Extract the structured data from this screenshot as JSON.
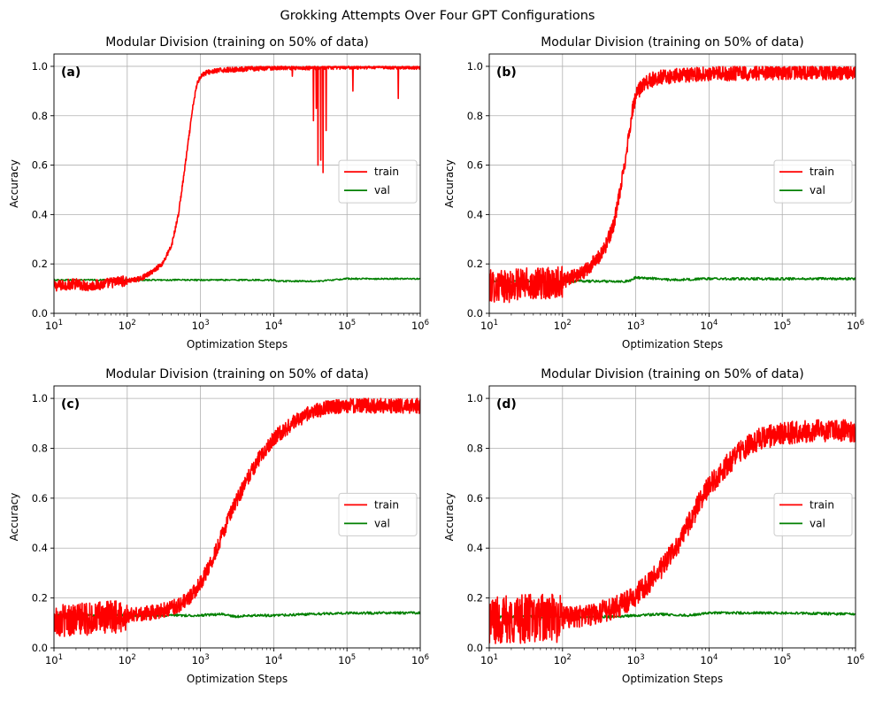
{
  "figure": {
    "suptitle": "Grokking Attempts Over Four GPT Configurations"
  },
  "colors": {
    "train": "#ff0000",
    "val": "#008000",
    "grid": "#b0b0b0",
    "axis": "#000000"
  },
  "chart_data": [
    {
      "type": "line",
      "panel_label": "(a)",
      "title": "Modular Division (training on 50% of data)",
      "xlabel": "Optimization Steps",
      "ylabel": "Accuracy",
      "xscale": "log",
      "xlim": [
        10,
        1000000
      ],
      "ylim": [
        0,
        1.05
      ],
      "xticks": [
        10,
        100,
        1000,
        10000,
        100000,
        1000000
      ],
      "xtick_labels": [
        {
          "base": "10",
          "exp": "1"
        },
        {
          "base": "10",
          "exp": "2"
        },
        {
          "base": "10",
          "exp": "3"
        },
        {
          "base": "10",
          "exp": "4"
        },
        {
          "base": "10",
          "exp": "5"
        },
        {
          "base": "10",
          "exp": "6"
        }
      ],
      "yticks": [
        0,
        0.2,
        0.4,
        0.6,
        0.8,
        1.0
      ],
      "ytick_labels": [
        "0.0",
        "0.2",
        "0.4",
        "0.6",
        "0.8",
        "1.0"
      ],
      "grid": true,
      "legend_position": "center-right",
      "series": [
        {
          "name": "train",
          "color": "#ff0000",
          "noise": 0.01,
          "x": [
            10,
            20,
            30,
            50,
            80,
            100,
            150,
            200,
            300,
            400,
            500,
            600,
            700,
            800,
            900,
            1000,
            1200,
            2000,
            5000,
            10000,
            30000,
            100000,
            1000000
          ],
          "y": [
            0.11,
            0.12,
            0.11,
            0.12,
            0.13,
            0.13,
            0.14,
            0.16,
            0.2,
            0.27,
            0.4,
            0.57,
            0.72,
            0.85,
            0.93,
            0.96,
            0.975,
            0.985,
            0.99,
            0.995,
            0.995,
            0.998,
            0.998
          ],
          "dips": [
            {
              "x": 18000,
              "y": 0.96
            },
            {
              "x": 35000,
              "y": 0.78
            },
            {
              "x": 38000,
              "y": 0.83
            },
            {
              "x": 40000,
              "y": 0.6
            },
            {
              "x": 44000,
              "y": 0.62
            },
            {
              "x": 47000,
              "y": 0.57
            },
            {
              "x": 52000,
              "y": 0.74
            },
            {
              "x": 120000,
              "y": 0.9
            },
            {
              "x": 500000,
              "y": 0.87
            }
          ]
        },
        {
          "name": "val",
          "color": "#008000",
          "noise": 0.003,
          "x": [
            10,
            1000,
            10000,
            11000,
            40000,
            100000,
            1000000
          ],
          "y": [
            0.135,
            0.135,
            0.135,
            0.13,
            0.13,
            0.14,
            0.14
          ]
        }
      ]
    },
    {
      "type": "line",
      "panel_label": "(b)",
      "title": "Modular Division (training on 50% of data)",
      "xlabel": "Optimization Steps",
      "ylabel": "Accuracy",
      "xscale": "log",
      "xlim": [
        10,
        1000000
      ],
      "ylim": [
        0,
        1.05
      ],
      "xticks": [
        10,
        100,
        1000,
        10000,
        100000,
        1000000
      ],
      "xtick_labels": [
        {
          "base": "10",
          "exp": "1"
        },
        {
          "base": "10",
          "exp": "2"
        },
        {
          "base": "10",
          "exp": "3"
        },
        {
          "base": "10",
          "exp": "4"
        },
        {
          "base": "10",
          "exp": "5"
        },
        {
          "base": "10",
          "exp": "6"
        }
      ],
      "yticks": [
        0,
        0.2,
        0.4,
        0.6,
        0.8,
        1.0
      ],
      "ytick_labels": [
        "0.0",
        "0.2",
        "0.4",
        "0.6",
        "0.8",
        "1.0"
      ],
      "grid": true,
      "legend_position": "center-right",
      "series": [
        {
          "name": "train",
          "color": "#ff0000",
          "noise": 0.03,
          "x": [
            10,
            20,
            30,
            50,
            80,
            100,
            150,
            200,
            300,
            400,
            500,
            600,
            700,
            800,
            900,
            1000,
            1200,
            1500,
            2000,
            5000,
            10000,
            100000,
            1000000
          ],
          "y": [
            0.11,
            0.11,
            0.12,
            0.12,
            0.13,
            0.13,
            0.15,
            0.17,
            0.22,
            0.28,
            0.36,
            0.48,
            0.6,
            0.72,
            0.82,
            0.88,
            0.92,
            0.94,
            0.955,
            0.965,
            0.97,
            0.975,
            0.975
          ],
          "dips": []
        },
        {
          "name": "val",
          "color": "#008000",
          "noise": 0.005,
          "x": [
            10,
            800,
            1000,
            2000,
            3000,
            10000,
            100000,
            1000000
          ],
          "y": [
            0.13,
            0.13,
            0.145,
            0.14,
            0.135,
            0.14,
            0.14,
            0.14
          ]
        }
      ]
    },
    {
      "type": "line",
      "panel_label": "(c)",
      "title": "Modular Division (training on 50% of data)",
      "xlabel": "Optimization Steps",
      "ylabel": "Accuracy",
      "xscale": "log",
      "xlim": [
        10,
        1000000
      ],
      "ylim": [
        0,
        1.05
      ],
      "xticks": [
        10,
        100,
        1000,
        10000,
        100000,
        1000000
      ],
      "xtick_labels": [
        {
          "base": "10",
          "exp": "1"
        },
        {
          "base": "10",
          "exp": "2"
        },
        {
          "base": "10",
          "exp": "3"
        },
        {
          "base": "10",
          "exp": "4"
        },
        {
          "base": "10",
          "exp": "5"
        },
        {
          "base": "10",
          "exp": "6"
        }
      ],
      "yticks": [
        0,
        0.2,
        0.4,
        0.6,
        0.8,
        1.0
      ],
      "ytick_labels": [
        "0.0",
        "0.2",
        "0.4",
        "0.6",
        "0.8",
        "1.0"
      ],
      "grid": true,
      "legend_position": "center-right",
      "series": [
        {
          "name": "train",
          "color": "#ff0000",
          "noise": 0.03,
          "x": [
            10,
            50,
            100,
            200,
            300,
            500,
            700,
            1000,
            1500,
            2000,
            3000,
            5000,
            7000,
            10000,
            20000,
            30000,
            50000,
            100000,
            1000000
          ],
          "y": [
            0.11,
            0.12,
            0.13,
            0.14,
            0.15,
            0.17,
            0.2,
            0.26,
            0.36,
            0.46,
            0.58,
            0.71,
            0.78,
            0.84,
            0.91,
            0.94,
            0.96,
            0.97,
            0.97
          ],
          "dips": []
        },
        {
          "name": "val",
          "color": "#008000",
          "noise": 0.005,
          "x": [
            10,
            1000,
            1200,
            2000,
            3000,
            5000,
            10000,
            100000,
            1000000
          ],
          "y": [
            0.13,
            0.13,
            0.132,
            0.135,
            0.125,
            0.13,
            0.13,
            0.14,
            0.14
          ]
        }
      ]
    },
    {
      "type": "line",
      "panel_label": "(d)",
      "title": "Modular Division (training on 50% of data)",
      "xlabel": "Optimization Steps",
      "ylabel": "Accuracy",
      "xscale": "log",
      "xlim": [
        10,
        1000000
      ],
      "ylim": [
        0,
        1.05
      ],
      "xticks": [
        10,
        100,
        1000,
        10000,
        100000,
        1000000
      ],
      "xtick_labels": [
        {
          "base": "10",
          "exp": "1"
        },
        {
          "base": "10",
          "exp": "2"
        },
        {
          "base": "10",
          "exp": "3"
        },
        {
          "base": "10",
          "exp": "4"
        },
        {
          "base": "10",
          "exp": "5"
        },
        {
          "base": "10",
          "exp": "6"
        }
      ],
      "yticks": [
        0,
        0.2,
        0.4,
        0.6,
        0.8,
        1.0
      ],
      "ytick_labels": [
        "0.0",
        "0.2",
        "0.4",
        "0.6",
        "0.8",
        "1.0"
      ],
      "grid": true,
      "legend_position": "center-right",
      "series": [
        {
          "name": "train",
          "color": "#ff0000",
          "noise": 0.045,
          "x": [
            10,
            50,
            100,
            200,
            300,
            500,
            700,
            1000,
            2000,
            3000,
            5000,
            7000,
            10000,
            20000,
            30000,
            50000,
            100000,
            300000,
            1000000
          ],
          "y": [
            0.11,
            0.12,
            0.12,
            0.13,
            0.14,
            0.16,
            0.18,
            0.21,
            0.3,
            0.37,
            0.48,
            0.57,
            0.65,
            0.75,
            0.8,
            0.84,
            0.86,
            0.87,
            0.87
          ],
          "dips": []
        },
        {
          "name": "val",
          "color": "#008000",
          "noise": 0.005,
          "x": [
            10,
            500,
            1000,
            2000,
            5000,
            10000,
            30000,
            100000,
            1000000
          ],
          "y": [
            0.125,
            0.125,
            0.13,
            0.135,
            0.13,
            0.14,
            0.14,
            0.14,
            0.135
          ]
        }
      ]
    }
  ]
}
